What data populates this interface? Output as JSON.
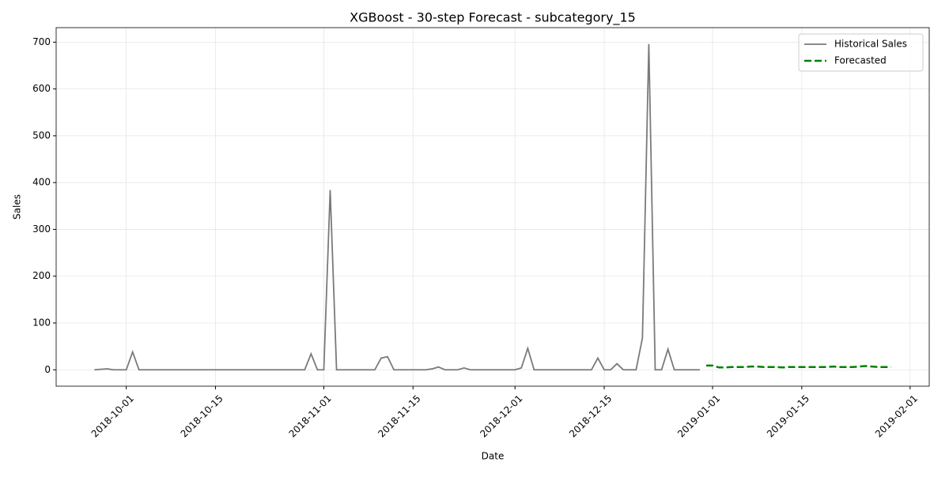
{
  "chart_data": {
    "type": "line",
    "title": "XGBoost - 30-step Forecast - subcategory_15",
    "x_label": "Date",
    "y_label": "Sales",
    "grid": true,
    "legend": "upper right",
    "xlim": [
      "2018-09-20",
      "2019-02-04"
    ],
    "ylim": [
      -35,
      731
    ],
    "xticks": [
      "2018-10-01",
      "2018-10-15",
      "2018-11-01",
      "2018-11-15",
      "2018-12-01",
      "2018-12-15",
      "2019-01-01",
      "2019-01-15",
      "2019-02-01"
    ],
    "yticks": [
      0,
      100,
      200,
      300,
      400,
      500,
      600,
      700
    ],
    "series": [
      {
        "name": "Historical Sales",
        "color": "#7a7a7a",
        "dashed": false,
        "x": [
          "2018-09-26",
          "2018-09-27",
          "2018-09-28",
          "2018-09-29",
          "2018-09-30",
          "2018-10-01",
          "2018-10-02",
          "2018-10-03",
          "2018-10-04",
          "2018-10-05",
          "2018-10-06",
          "2018-10-07",
          "2018-10-08",
          "2018-10-09",
          "2018-10-10",
          "2018-10-11",
          "2018-10-12",
          "2018-10-13",
          "2018-10-14",
          "2018-10-15",
          "2018-10-16",
          "2018-10-17",
          "2018-10-18",
          "2018-10-19",
          "2018-10-20",
          "2018-10-21",
          "2018-10-22",
          "2018-10-23",
          "2018-10-24",
          "2018-10-25",
          "2018-10-26",
          "2018-10-27",
          "2018-10-28",
          "2018-10-29",
          "2018-10-30",
          "2018-10-31",
          "2018-11-01",
          "2018-11-02",
          "2018-11-03",
          "2018-11-04",
          "2018-11-05",
          "2018-11-06",
          "2018-11-07",
          "2018-11-08",
          "2018-11-09",
          "2018-11-10",
          "2018-11-11",
          "2018-11-12",
          "2018-11-13",
          "2018-11-14",
          "2018-11-15",
          "2018-11-16",
          "2018-11-17",
          "2018-11-18",
          "2018-11-19",
          "2018-11-20",
          "2018-11-21",
          "2018-11-22",
          "2018-11-23",
          "2018-11-24",
          "2018-11-25",
          "2018-11-26",
          "2018-11-27",
          "2018-11-28",
          "2018-11-29",
          "2018-11-30",
          "2018-12-01",
          "2018-12-02",
          "2018-12-03",
          "2018-12-04",
          "2018-12-05",
          "2018-12-06",
          "2018-12-07",
          "2018-12-08",
          "2018-12-09",
          "2018-12-10",
          "2018-12-11",
          "2018-12-12",
          "2018-12-13",
          "2018-12-14",
          "2018-12-15",
          "2018-12-16",
          "2018-12-17",
          "2018-12-18",
          "2018-12-19",
          "2018-12-20",
          "2018-12-21",
          "2018-12-22",
          "2018-12-23",
          "2018-12-24",
          "2018-12-25",
          "2018-12-26",
          "2018-12-27",
          "2018-12-28",
          "2018-12-29",
          "2018-12-30"
        ],
        "values": [
          0,
          1,
          2,
          0,
          0,
          0,
          38,
          0,
          0,
          0,
          0,
          0,
          0,
          0,
          0,
          0,
          0,
          0,
          0,
          0,
          0,
          0,
          0,
          0,
          0,
          0,
          0,
          0,
          0,
          0,
          0,
          0,
          0,
          0,
          34,
          0,
          0,
          384,
          0,
          0,
          0,
          0,
          0,
          0,
          0,
          25,
          28,
          0,
          0,
          0,
          0,
          0,
          0,
          2,
          6,
          0,
          0,
          0,
          4,
          0,
          0,
          0,
          0,
          0,
          0,
          0,
          0,
          4,
          46,
          0,
          0,
          0,
          0,
          0,
          0,
          0,
          0,
          0,
          0,
          25,
          0,
          0,
          13,
          0,
          0,
          0,
          68,
          696,
          0,
          0,
          44,
          0,
          0,
          0,
          0,
          0
        ]
      },
      {
        "name": "Forecasted",
        "color": "#008000",
        "dashed": true,
        "x": [
          "2018-12-31",
          "2019-01-01",
          "2019-01-02",
          "2019-01-03",
          "2019-01-04",
          "2019-01-05",
          "2019-01-06",
          "2019-01-07",
          "2019-01-08",
          "2019-01-09",
          "2019-01-10",
          "2019-01-11",
          "2019-01-12",
          "2019-01-13",
          "2019-01-14",
          "2019-01-15",
          "2019-01-16",
          "2019-01-17",
          "2019-01-18",
          "2019-01-19",
          "2019-01-20",
          "2019-01-21",
          "2019-01-22",
          "2019-01-23",
          "2019-01-24",
          "2019-01-25",
          "2019-01-26",
          "2019-01-27",
          "2019-01-28",
          "2019-01-29"
        ],
        "values": [
          9,
          9,
          5,
          5,
          6,
          6,
          6,
          7,
          7,
          6,
          6,
          6,
          5,
          6,
          6,
          6,
          6,
          6,
          6,
          6,
          7,
          6,
          6,
          6,
          7,
          8,
          7,
          6,
          6,
          6
        ]
      }
    ]
  }
}
